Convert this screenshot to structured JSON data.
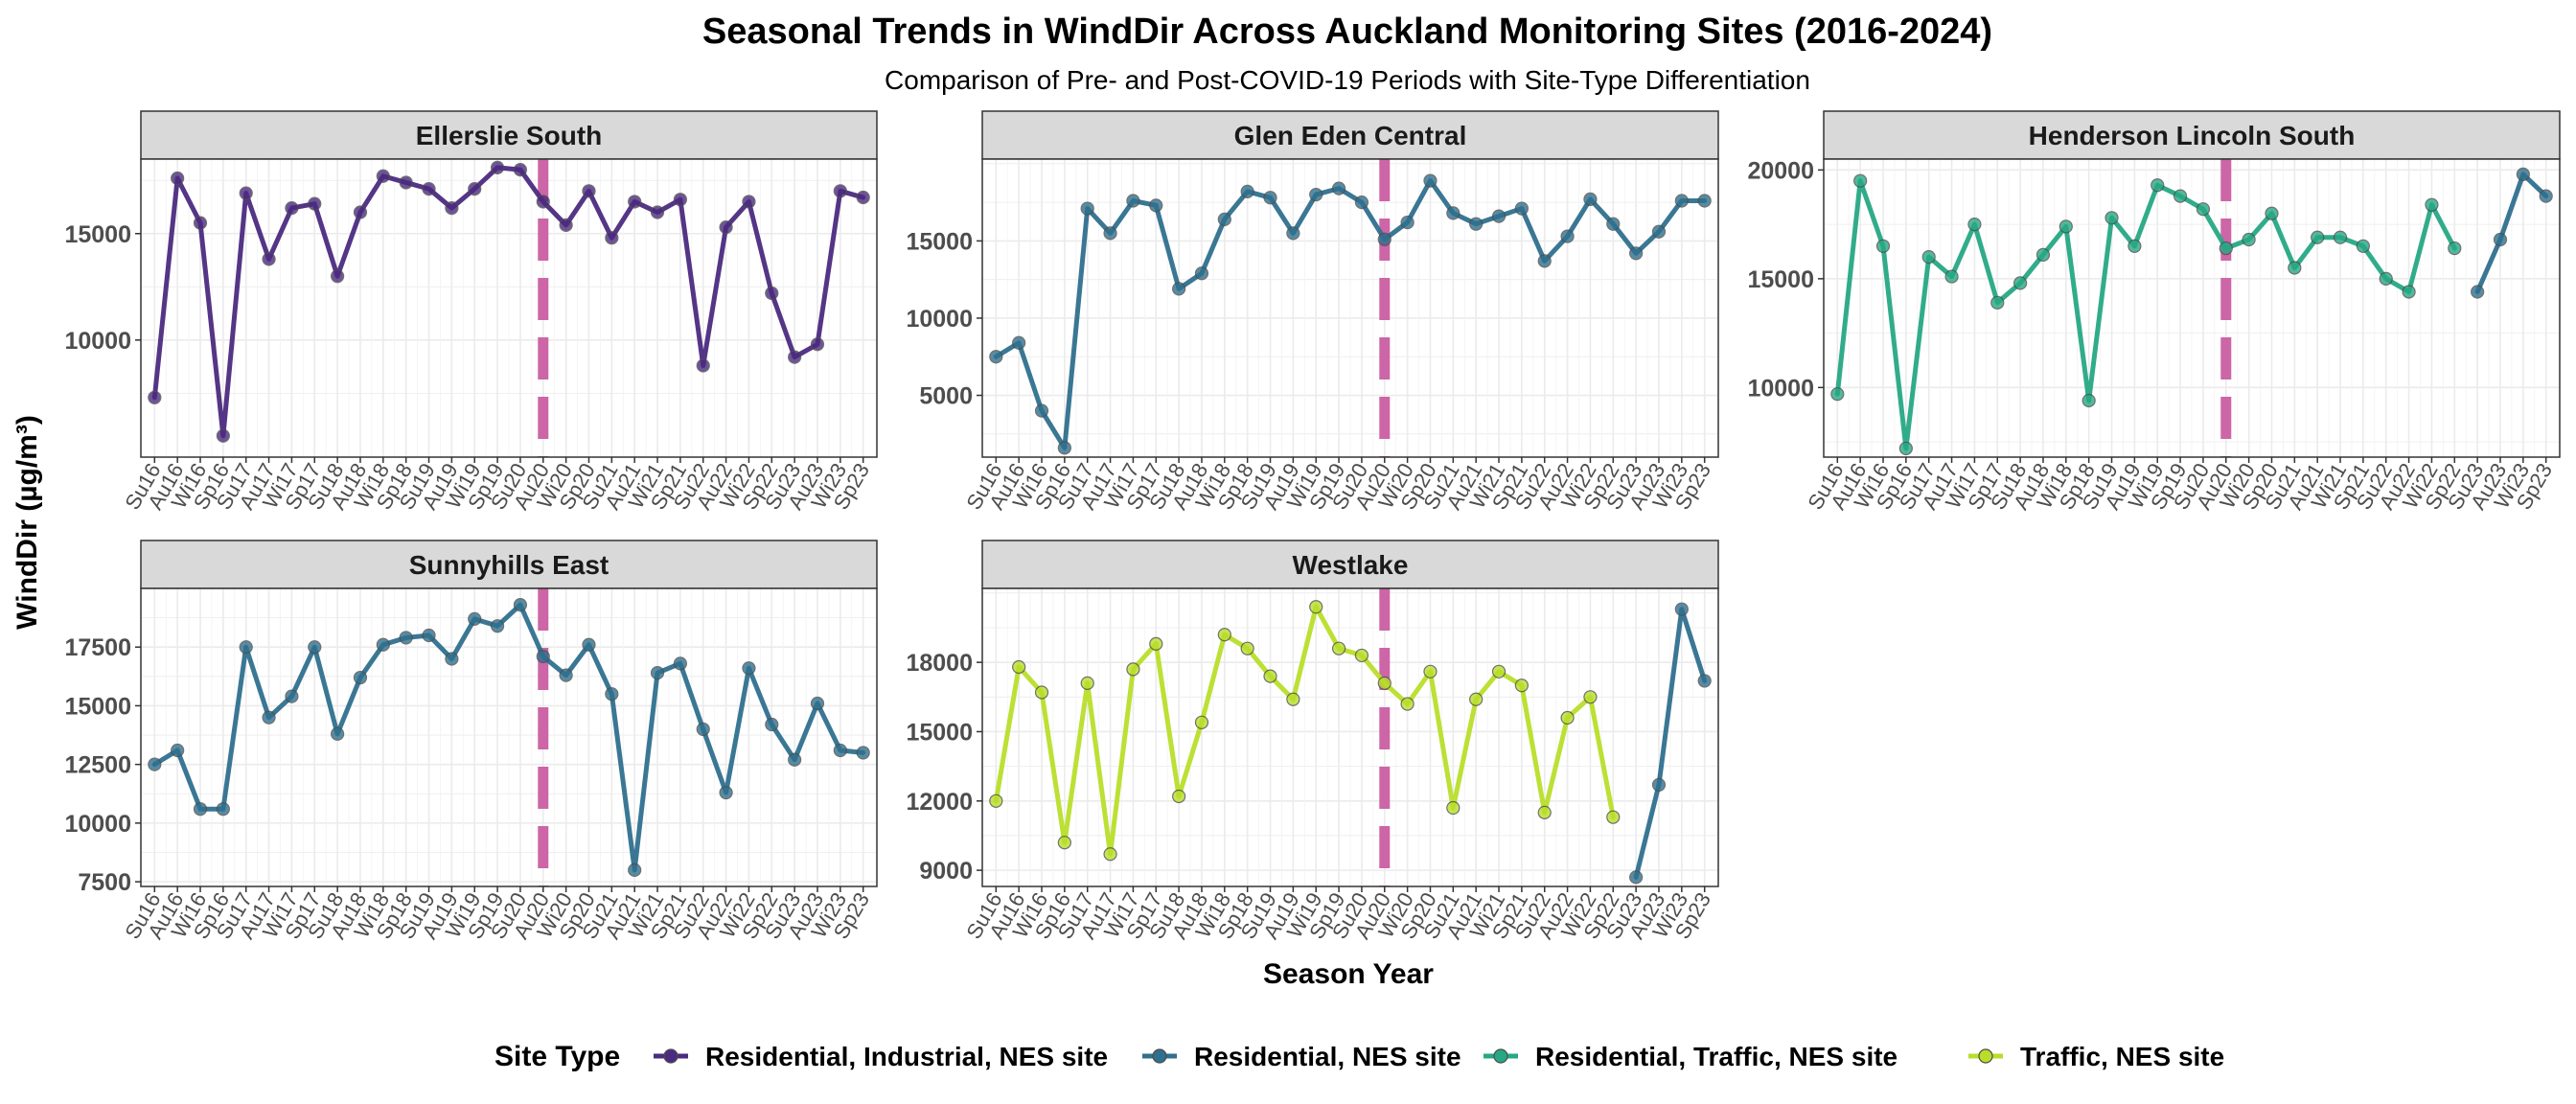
{
  "chart_data": {
    "type": "line",
    "title": "Seasonal Trends in  WindDir  Across Auckland Monitoring Sites (2016-2024)",
    "subtitle": "Comparison of Pre- and Post-COVID-19 Periods with Site-Type Differentiation",
    "xlabel": "Season Year",
    "ylabel": "WindDir (µg/m³)",
    "categories": [
      "Su16",
      "Au16",
      "Wi16",
      "Sp16",
      "Su17",
      "Au17",
      "Wi17",
      "Sp17",
      "Su18",
      "Au18",
      "Wi18",
      "Sp18",
      "Su19",
      "Au19",
      "Wi19",
      "Sp19",
      "Su20",
      "Au20",
      "Wi20",
      "Sp20",
      "Su21",
      "Au21",
      "Wi21",
      "Sp21",
      "Su22",
      "Au22",
      "Wi22",
      "Sp22",
      "Su23",
      "Au23",
      "Wi23",
      "Sp23"
    ],
    "covid_marker": "Au20",
    "legend": {
      "title": "Site Type",
      "entries": [
        {
          "label": "Residential, Industrial, NES site",
          "color": "#4B2A7F"
        },
        {
          "label": "Residential, NES site",
          "color": "#2F708E"
        },
        {
          "label": "Residential, Traffic, NES site",
          "color": "#26A884"
        },
        {
          "label": "Traffic, NES site",
          "color": "#B8DE29"
        }
      ]
    },
    "panels": [
      {
        "name": "Ellerslie South",
        "ylim": [
          4500,
          18500
        ],
        "yticks": [
          10000,
          15000
        ],
        "series": [
          {
            "site_type": "Residential, Industrial, NES site",
            "color": "#4B2A7F",
            "values": [
              7300,
              17600,
              15500,
              5500,
              16900,
              13800,
              16200,
              16400,
              13000,
              16000,
              17700,
              17400,
              17100,
              16200,
              17100,
              18100,
              18000,
              16500,
              15400,
              17000,
              14800,
              16500,
              16000,
              16600,
              8800,
              15300,
              16500,
              12200,
              9200,
              9800,
              17000,
              16700
            ]
          }
        ]
      },
      {
        "name": "Glen Eden Central",
        "ylim": [
          1000,
          20300
        ],
        "yticks": [
          5000,
          10000,
          15000
        ],
        "series": [
          {
            "site_type": "Residential, NES site",
            "color": "#2F708E",
            "values": [
              7500,
              8400,
              4000,
              1600,
              17100,
              15500,
              17600,
              17300,
              11900,
              12900,
              16400,
              18200,
              17800,
              15500,
              18000,
              18400,
              17500,
              15100,
              16200,
              18900,
              16800,
              16100,
              16600,
              17100,
              13700,
              15300,
              17700,
              16100,
              14200,
              15600,
              17600,
              17600
            ]
          }
        ]
      },
      {
        "name": "Henderson Lincoln South",
        "ylim": [
          6800,
          20500
        ],
        "yticks": [
          10000,
          15000,
          20000
        ],
        "series": [
          {
            "site_type": "Residential, Traffic, NES site",
            "color": "#26A884",
            "values": [
              9700,
              19500,
              16500,
              7200,
              16000,
              15100,
              17500,
              13900,
              14800,
              16100,
              17400,
              9400,
              17800,
              16500,
              19300,
              18800,
              18200,
              16400,
              16800,
              18000,
              15500,
              16900,
              16900,
              16500,
              15000,
              14400,
              18400,
              16400,
              null,
              null,
              null,
              null
            ]
          },
          {
            "site_type": "Residential, NES site",
            "color": "#2F708E",
            "values": [
              null,
              null,
              null,
              null,
              null,
              null,
              null,
              null,
              null,
              null,
              null,
              null,
              null,
              null,
              null,
              null,
              null,
              null,
              null,
              null,
              null,
              null,
              null,
              null,
              null,
              null,
              null,
              null,
              14400,
              16800,
              19800,
              18800
            ]
          }
        ]
      },
      {
        "name": "Sunnyhills East",
        "ylim": [
          7300,
          20000
        ],
        "yticks": [
          7500,
          10000,
          12500,
          15000,
          17500
        ],
        "series": [
          {
            "site_type": "Residential, NES site",
            "color": "#2F708E",
            "values": [
              12500,
              13100,
              10600,
              10600,
              17500,
              14500,
              15400,
              17500,
              13800,
              16200,
              17600,
              17900,
              18000,
              17000,
              18700,
              18400,
              19300,
              17100,
              16300,
              17600,
              15500,
              8000,
              16400,
              16800,
              14000,
              11300,
              16600,
              14200,
              12700,
              15100,
              13100,
              13000
            ]
          }
        ]
      },
      {
        "name": "Westlake",
        "ylim": [
          8300,
          21200
        ],
        "yticks": [
          9000,
          12000,
          15000,
          18000
        ],
        "series": [
          {
            "site_type": "Traffic, NES site",
            "color": "#B8DE29",
            "values": [
              12000,
              17800,
              16700,
              10200,
              17100,
              9700,
              17700,
              18800,
              12200,
              15400,
              19200,
              18600,
              17400,
              16400,
              20400,
              18600,
              18300,
              17100,
              16200,
              17600,
              11700,
              16400,
              17600,
              17000,
              11500,
              15600,
              16500,
              11300,
              null,
              null,
              null,
              null
            ]
          },
          {
            "site_type": "Residential, NES site",
            "color": "#2F708E",
            "values": [
              null,
              null,
              null,
              null,
              null,
              null,
              null,
              null,
              null,
              null,
              null,
              null,
              null,
              null,
              null,
              null,
              null,
              null,
              null,
              null,
              null,
              null,
              null,
              null,
              null,
              null,
              null,
              null,
              8700,
              12700,
              20300,
              17200
            ]
          }
        ]
      }
    ]
  }
}
